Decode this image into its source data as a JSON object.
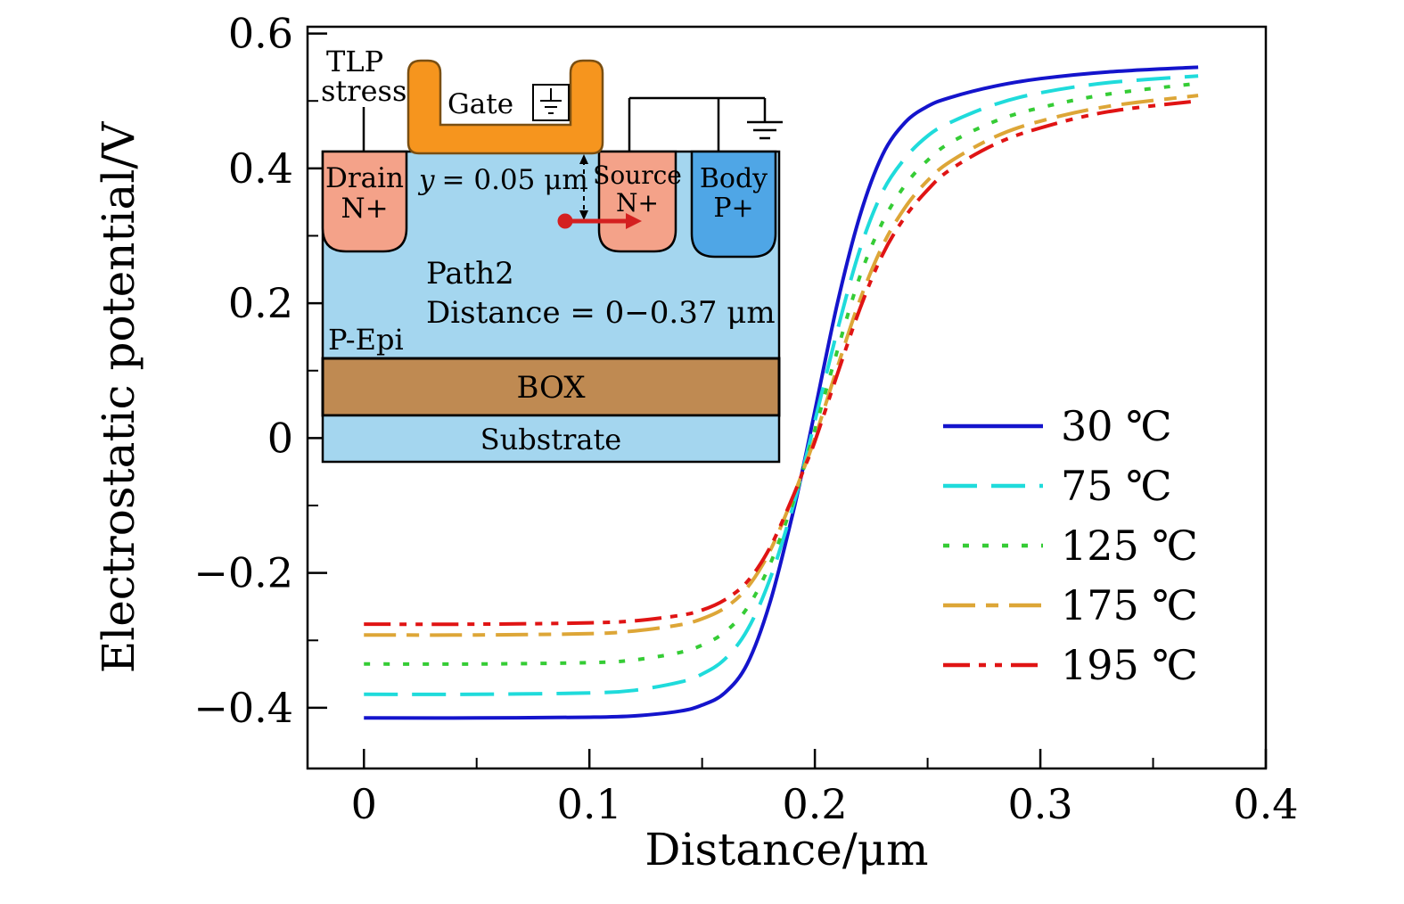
{
  "colors": {
    "epi": "#a4d6ef",
    "nplus": "#f4a289",
    "pplus": "#4fa6e6",
    "gate": "#f6951e",
    "box_layer": "#bf8a52",
    "substrate": "#a4d6ef",
    "accent_red": "#d42020",
    "frame": "#000000"
  },
  "inset": {
    "tlp_line1": "TLP",
    "tlp_line2": "stress",
    "gate_label": "Gate",
    "drain_line1": "Drain",
    "drain_line2": "N+",
    "source_line1": "Source",
    "source_line2": "N+",
    "body_line1": "Body",
    "body_line2": "P+",
    "y_var": "y",
    "y_rest": "= 0.05 μm",
    "path_label": "Path2",
    "path_distance_label": "Distance = 0−0.37 μm",
    "pepi_label": "P-Epi",
    "box_label": "BOX",
    "substrate_label": "Substrate"
  },
  "chart_data": {
    "type": "line",
    "title": "",
    "xlabel": "Distance/μm",
    "ylabel": "Electrostatic potential/V",
    "xlim": [
      -0.025,
      0.4
    ],
    "ylim": [
      -0.49,
      0.61
    ],
    "grid": false,
    "legend_position": "right-center",
    "x_ticks": [
      0,
      0.1,
      0.2,
      0.3,
      0.4
    ],
    "x_tick_labels": [
      "0",
      "0.1",
      "0.2",
      "0.3",
      "0.4"
    ],
    "x_minor_ticks": [
      0.05,
      0.15,
      0.25,
      0.35
    ],
    "y_ticks": [
      -0.4,
      -0.2,
      0,
      0.2,
      0.4,
      0.6
    ],
    "y_tick_labels": [
      "−0.4",
      "−0.2",
      "0",
      "0.2",
      "0.4",
      "0.6"
    ],
    "y_minor_ticks": [
      -0.3,
      -0.1,
      0.1,
      0.3,
      0.5
    ],
    "x": [
      0,
      0.05,
      0.1,
      0.12,
      0.14,
      0.15,
      0.16,
      0.17,
      0.18,
      0.19,
      0.195,
      0.2,
      0.21,
      0.22,
      0.23,
      0.24,
      0.25,
      0.26,
      0.28,
      0.3,
      0.33,
      0.37
    ],
    "series": [
      {
        "name": "30 ℃",
        "color": "#1414cc",
        "dash": "",
        "values": [
          -0.415,
          -0.415,
          -0.414,
          -0.412,
          -0.405,
          -0.396,
          -0.378,
          -0.335,
          -0.245,
          -0.115,
          -0.04,
          0.04,
          0.2,
          0.33,
          0.42,
          0.468,
          0.492,
          0.505,
          0.522,
          0.533,
          0.543,
          0.55
        ]
      },
      {
        "name": "75 ℃",
        "color": "#1fdbdb",
        "dash": "38 16",
        "values": [
          -0.38,
          -0.38,
          -0.378,
          -0.374,
          -0.362,
          -0.35,
          -0.328,
          -0.285,
          -0.21,
          -0.105,
          -0.042,
          0.025,
          0.16,
          0.28,
          0.365,
          0.415,
          0.448,
          0.468,
          0.495,
          0.512,
          0.527,
          0.537
        ]
      },
      {
        "name": "125 ℃",
        "color": "#35cc35",
        "dash": "7 15",
        "values": [
          -0.335,
          -0.335,
          -0.333,
          -0.329,
          -0.318,
          -0.307,
          -0.288,
          -0.252,
          -0.188,
          -0.098,
          -0.045,
          0.012,
          0.13,
          0.24,
          0.32,
          0.375,
          0.412,
          0.438,
          0.47,
          0.49,
          0.51,
          0.526
        ]
      },
      {
        "name": "175 ℃",
        "color": "#dda637",
        "dash": "36 12 14 12",
        "values": [
          -0.292,
          -0.292,
          -0.29,
          -0.286,
          -0.277,
          -0.268,
          -0.252,
          -0.222,
          -0.168,
          -0.09,
          -0.046,
          0.0,
          0.105,
          0.205,
          0.285,
          0.342,
          0.382,
          0.41,
          0.447,
          0.47,
          0.492,
          0.508
        ]
      },
      {
        "name": "195 ℃",
        "color": "#e01414",
        "dash": "30 10 8 10 8 10",
        "values": [
          -0.276,
          -0.276,
          -0.274,
          -0.271,
          -0.263,
          -0.255,
          -0.24,
          -0.213,
          -0.163,
          -0.089,
          -0.047,
          -0.005,
          0.095,
          0.192,
          0.272,
          0.328,
          0.368,
          0.398,
          0.436,
          0.46,
          0.484,
          0.5
        ]
      }
    ]
  }
}
